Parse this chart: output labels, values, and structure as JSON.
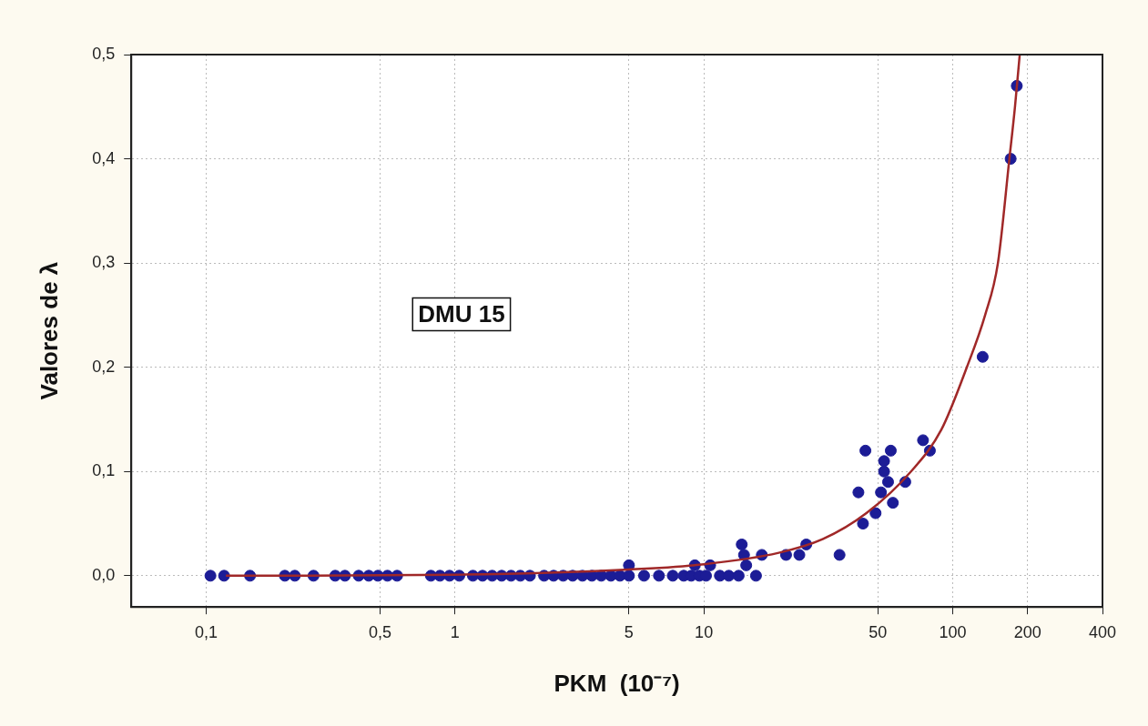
{
  "chart_data": {
    "type": "scatter",
    "xlabel": "PKM  (10⁻⁷)",
    "ylabel": "Valores de λ",
    "log": "x",
    "grid": true,
    "xlim": [
      0.05,
      400
    ],
    "ylim": [
      -0.03,
      0.5
    ],
    "xticks": [
      {
        "value": 0.1,
        "label": "0,1"
      },
      {
        "value": 0.5,
        "label": "0,5"
      },
      1,
      5,
      10,
      50,
      100,
      200,
      400
    ],
    "yticks": [
      {
        "value": 0,
        "label": "0,0"
      },
      {
        "value": 0.1,
        "label": "0,1"
      },
      {
        "value": 0.2,
        "label": "0,2"
      },
      {
        "value": 0.3,
        "label": "0,3"
      },
      {
        "value": 0.4,
        "label": "0,4"
      },
      {
        "value": 0.5,
        "label": "0,5"
      }
    ],
    "annotations": [
      "DMU 15"
    ],
    "series": [
      {
        "marker": "circle",
        "color": "#1c1c96",
        "x": [
          0.104,
          0.118,
          0.15,
          0.207,
          0.227,
          0.27,
          0.33,
          0.361,
          0.41,
          0.45,
          0.49,
          0.535,
          0.585,
          0.8,
          0.87,
          0.95,
          1.04,
          1.18,
          1.29,
          1.41,
          1.54,
          1.68,
          1.83,
          2.0,
          2.28,
          2.49,
          2.72,
          2.97,
          3.25,
          3.55,
          3.87,
          4.23,
          4.6,
          5.0,
          5.0,
          5.75,
          6.6,
          7.5,
          8.3,
          8.9,
          9.2,
          9.6,
          10.2,
          10.6,
          11.6,
          12.6,
          13.8,
          14.2,
          14.5,
          14.8,
          16.2,
          17.1,
          21.4,
          24.2,
          25.8,
          35.1,
          41.8,
          43.6,
          44.6,
          49,
          51.5,
          53,
          53,
          55,
          56.4,
          57.5,
          64.5,
          76,
          81,
          132,
          171,
          181
        ],
        "values": [
          0,
          0,
          0,
          0,
          0,
          0,
          0,
          0,
          0,
          0,
          0,
          0,
          0,
          0,
          0,
          0,
          0,
          0,
          0,
          0,
          0,
          0,
          0,
          0,
          0,
          0,
          0,
          0,
          0,
          0,
          0,
          0,
          0,
          0.01,
          0,
          0,
          0,
          0,
          0,
          0,
          0.01,
          0,
          0,
          0.01,
          0,
          0,
          0,
          0.03,
          0.02,
          0.01,
          0,
          0.02,
          0.02,
          0.02,
          0.03,
          0.02,
          0.08,
          0.05,
          0.12,
          0.06,
          0.08,
          0.11,
          0.1,
          0.09,
          0.12,
          0.07,
          0.09,
          0.13,
          0.12,
          0.21,
          0.4,
          0.47
        ]
      },
      {
        "type": "line",
        "marker": "none",
        "color": "#a02828",
        "x": [
          0.12,
          1,
          5,
          10,
          20,
          30,
          45,
          68,
          90,
          114,
          135,
          152,
          169,
          178,
          186
        ],
        "values": [
          0,
          0.001,
          0.006,
          0.011,
          0.022,
          0.035,
          0.06,
          0.1,
          0.14,
          0.2,
          0.25,
          0.3,
          0.4,
          0.45,
          0.5
        ]
      }
    ]
  }
}
